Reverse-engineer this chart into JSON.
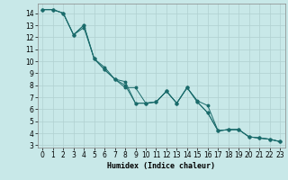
{
  "title": "",
  "xlabel": "Humidex (Indice chaleur)",
  "xlim": [
    -0.5,
    23.5
  ],
  "ylim": [
    2.8,
    14.8
  ],
  "yticks": [
    3,
    4,
    5,
    6,
    7,
    8,
    9,
    10,
    11,
    12,
    13,
    14
  ],
  "xticks": [
    0,
    1,
    2,
    3,
    4,
    5,
    6,
    7,
    8,
    9,
    10,
    11,
    12,
    13,
    14,
    15,
    16,
    17,
    18,
    19,
    20,
    21,
    22,
    23
  ],
  "bg_color": "#c8e8e8",
  "grid_color": "#b0d0d0",
  "line_color": "#1a6b6b",
  "line1_x": [
    0,
    1,
    2,
    3,
    4,
    5,
    6,
    7,
    8,
    9,
    10,
    11,
    12,
    13,
    14,
    15,
    16,
    17,
    18,
    19,
    20,
    21,
    22,
    23
  ],
  "line1_y": [
    14.3,
    14.3,
    14.0,
    12.2,
    12.8,
    10.2,
    9.5,
    8.5,
    8.3,
    6.5,
    6.5,
    6.6,
    7.5,
    6.5,
    7.8,
    6.7,
    6.3,
    4.2,
    4.3,
    4.3,
    3.7,
    3.6,
    3.5,
    3.3
  ],
  "line2_x": [
    0,
    1,
    2,
    3,
    4,
    5,
    6,
    7,
    8,
    9,
    10,
    11,
    12,
    13,
    14,
    15,
    16,
    17,
    18,
    19,
    20,
    21,
    22,
    23
  ],
  "line2_y": [
    14.3,
    14.3,
    14.0,
    12.2,
    13.0,
    10.2,
    9.3,
    8.5,
    7.8,
    7.8,
    6.5,
    6.6,
    7.5,
    6.5,
    7.8,
    6.6,
    5.7,
    4.2,
    4.3,
    4.3,
    3.7,
    3.6,
    3.5,
    3.3
  ],
  "line3_x": [
    0,
    1,
    2,
    3,
    4,
    5,
    6,
    7,
    8,
    9,
    10,
    11,
    12,
    13,
    14,
    15,
    16,
    17,
    18,
    19,
    20,
    21,
    22,
    23
  ],
  "line3_y": [
    14.3,
    14.3,
    14.0,
    12.2,
    13.0,
    10.2,
    9.3,
    8.5,
    8.0,
    6.5,
    6.5,
    6.6,
    7.5,
    6.5,
    7.8,
    6.6,
    5.7,
    4.2,
    4.3,
    4.3,
    3.7,
    3.6,
    3.5,
    3.3
  ],
  "marker_size": 1.8,
  "line_width": 0.7,
  "tick_fontsize": 5.5,
  "xlabel_fontsize": 6.0
}
